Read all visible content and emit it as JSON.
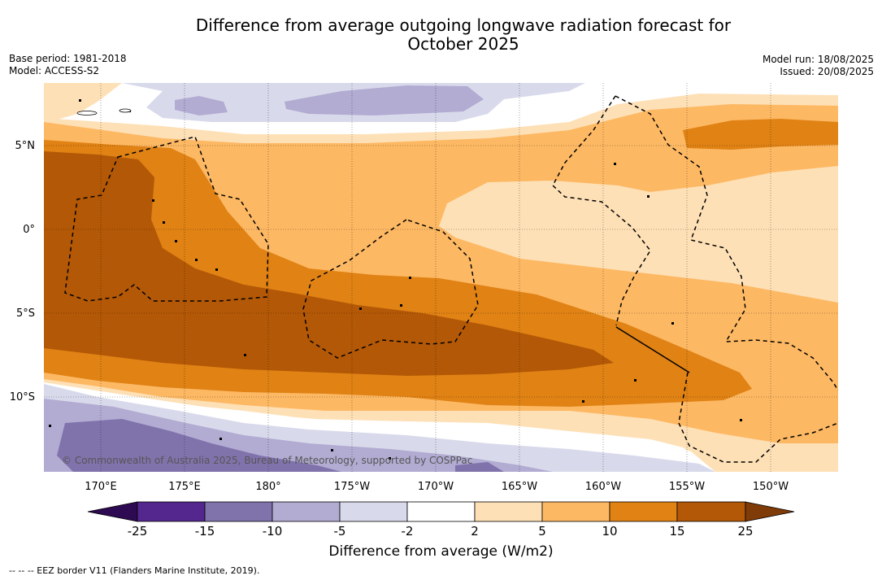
{
  "header": {
    "title_line1": "Difference from average outgoing longwave radiation forecast for",
    "title_line2": "October 2025",
    "base_period": "Base period: 1981-2018",
    "model": "Model: ACCESS-S2",
    "model_run": "Model run: 18/08/2025",
    "issued": "Issued: 20/08/2025"
  },
  "map": {
    "lat_labels": [
      "5°N",
      "0°",
      "5°S",
      "10°S"
    ],
    "lon_labels": [
      "170°E",
      "175°E",
      "180°",
      "175°W",
      "170°W",
      "165°W",
      "160°W",
      "155°W",
      "150°W"
    ],
    "credit": "© Commonwealth of Australia 2025, Bureau of Meteorology, supported by COSPPac"
  },
  "colorbar": {
    "ticks": [
      "-25",
      "-15",
      "-10",
      "-5",
      "-2",
      "2",
      "5",
      "10",
      "15",
      "25"
    ],
    "colors": [
      "#2e0a52",
      "#54278f",
      "#8073ac",
      "#b2abd2",
      "#d8daeb",
      "#ffffff",
      "#fee0b6",
      "#fdb863",
      "#e08214",
      "#b35806",
      "#7f3b08"
    ],
    "title": "Difference from average (W/m2)"
  },
  "legend": {
    "eez": "--  --  -- EEZ border V11 (Flanders Marine Institute, 2019)."
  }
}
